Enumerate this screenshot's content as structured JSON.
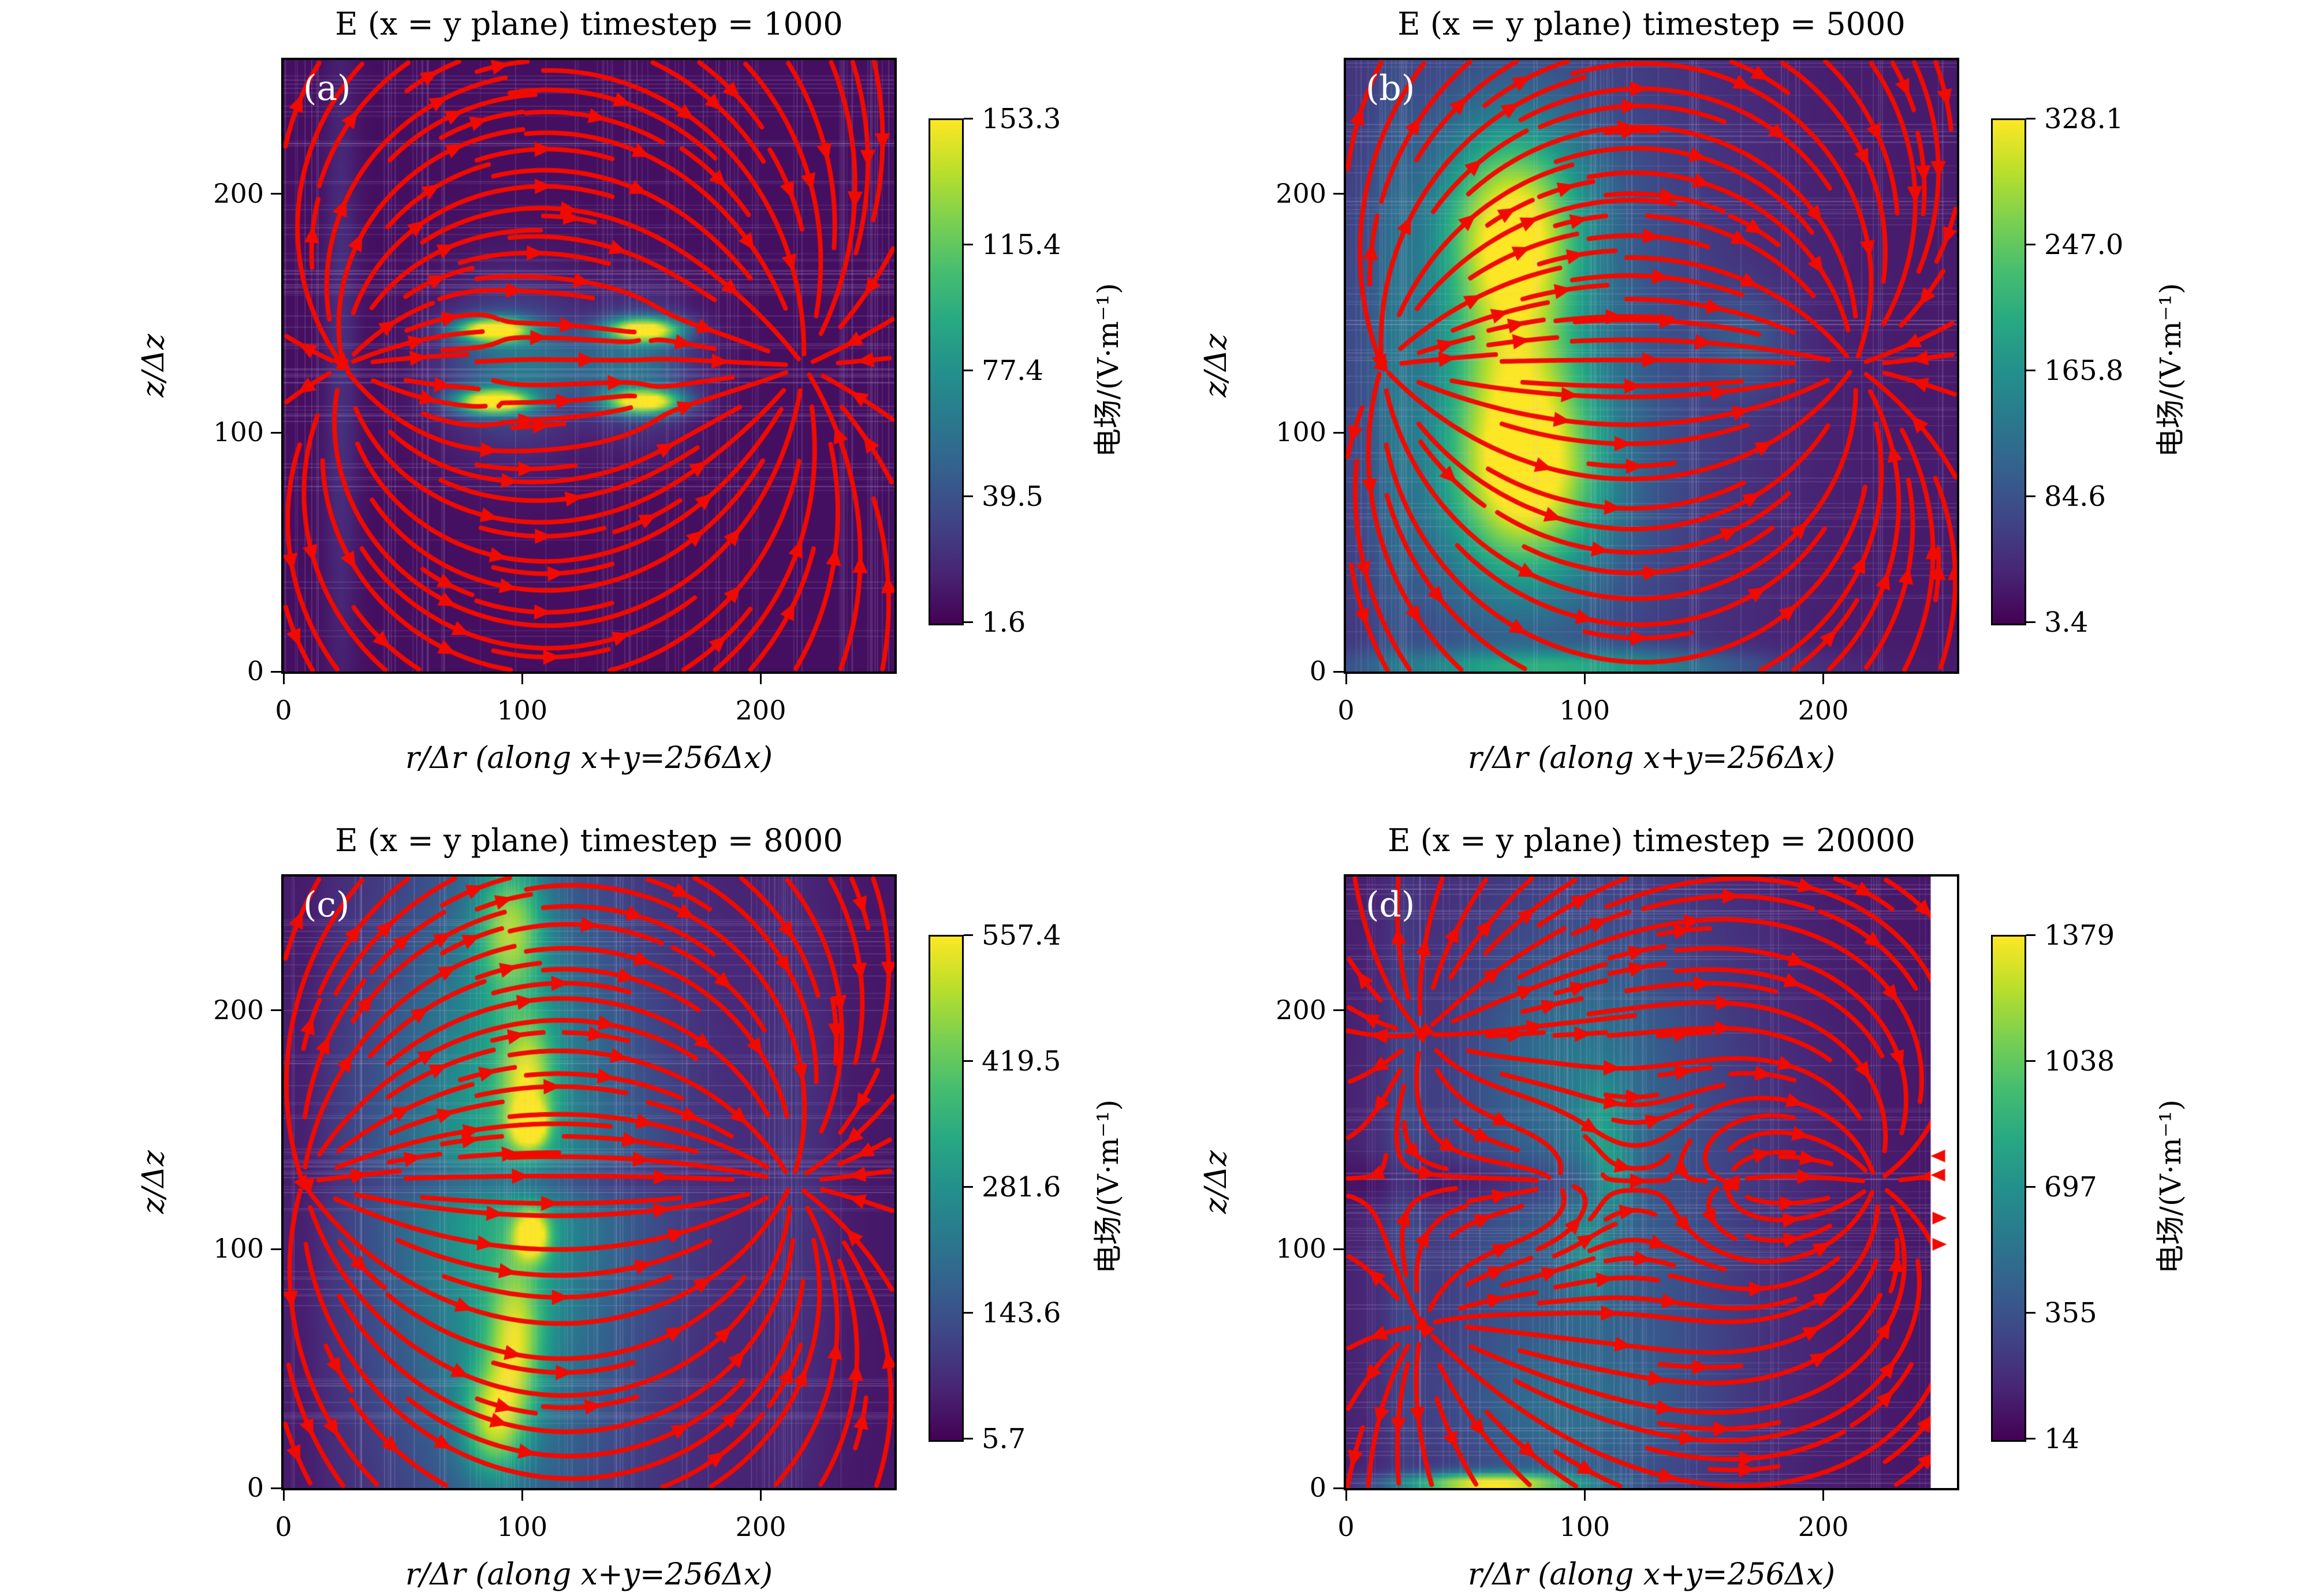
{
  "figure": {
    "background": "#ffffff",
    "streamline_color": "#f10a00",
    "panel_label_color": "#ffffff",
    "colorbar_label": "电场/(V·m⁻¹)"
  },
  "chart_data": [
    {
      "type": "heatmap",
      "panel": "(a)",
      "title": "E (x = y plane) timestep = 1000",
      "xlabel": "r/Δr (along x+y=256Δx)",
      "ylabel": "z/Δz",
      "xlim": [
        0,
        256
      ],
      "ylim": [
        0,
        256
      ],
      "xticks": [
        0,
        100,
        200
      ],
      "yticks": [
        0,
        100,
        200
      ],
      "colorbar": {
        "label": "电场/(V·m⁻¹)",
        "vmax": 153.3,
        "vmin": 1.6,
        "ticks": [
          "153.3",
          "115.4",
          "77.4",
          "39.5",
          "1.6"
        ]
      },
      "heatmap": {
        "base": 0.04,
        "blobs": [
          [
            95,
            128,
            20,
            24,
            0.26
          ],
          [
            150,
            128,
            15,
            20,
            0.24
          ],
          [
            122,
            128,
            28,
            10,
            0.16
          ],
          [
            88,
            143,
            11,
            3.5,
            1.05
          ],
          [
            88,
            113,
            11,
            3.5,
            1.05
          ],
          [
            151,
            143,
            11,
            3.5,
            1.0
          ],
          [
            151,
            113,
            11,
            3.5,
            1.0
          ],
          [
            24,
            128,
            5,
            105,
            0.1
          ]
        ]
      },
      "flow": {
        "sources": [
          [
            25,
            128,
            1.0
          ]
        ],
        "sinks": [
          [
            218,
            128,
            -0.85
          ],
          [
            88,
            143,
            -0.05
          ],
          [
            88,
            113,
            -0.05
          ],
          [
            151,
            143,
            -0.05
          ],
          [
            151,
            113,
            -0.05
          ]
        ]
      }
    },
    {
      "type": "heatmap",
      "panel": "(b)",
      "title": "E (x = y plane) timestep = 5000",
      "xlabel": "r/Δr (along x+y=256Δx)",
      "ylabel": "z/Δz",
      "xlim": [
        0,
        256
      ],
      "ylim": [
        0,
        256
      ],
      "xticks": [
        0,
        100,
        200
      ],
      "yticks": [
        0,
        100,
        200
      ],
      "colorbar": {
        "label": "电场/(V·m⁻¹)",
        "vmax": 328.1,
        "vmin": 3.4,
        "ticks": [
          "328.1",
          "247.0",
          "165.8",
          "84.6",
          "3.4"
        ]
      },
      "heatmap": {
        "base": 0.07,
        "blobs": [
          [
            70,
            128,
            60,
            112,
            0.3
          ],
          [
            70,
            186,
            20,
            28,
            0.72
          ],
          [
            75,
            83,
            22,
            30,
            0.78
          ],
          [
            70,
            135,
            18,
            28,
            0.32
          ],
          [
            168,
            137,
            13,
            15,
            0.15
          ],
          [
            90,
            2,
            55,
            5,
            0.4
          ],
          [
            20,
            128,
            6,
            105,
            0.1
          ]
        ]
      },
      "flow": {
        "sources": [
          [
            15,
            128,
            1.0
          ]
        ],
        "sinks": [
          [
            213,
            128,
            -0.85
          ]
        ]
      }
    },
    {
      "type": "heatmap",
      "panel": "(c)",
      "title": "E (x = y plane) timestep = 8000",
      "xlabel": "r/Δr (along x+y=256Δx)",
      "ylabel": "z/Δz",
      "xlim": [
        0,
        256
      ],
      "ylim": [
        0,
        256
      ],
      "xticks": [
        0,
        100,
        200
      ],
      "yticks": [
        0,
        100,
        200
      ],
      "colorbar": {
        "label": "电场/(V·m⁻¹)",
        "vmax": 557.4,
        "vmin": 5.7,
        "ticks": [
          "557.4",
          "419.5",
          "281.6",
          "143.6",
          "5.7"
        ]
      },
      "heatmap": {
        "base": 0.06,
        "blobs": [
          [
            95,
            128,
            52,
            115,
            0.33
          ],
          [
            92,
            128,
            25,
            95,
            0.22
          ],
          [
            95,
            235,
            10,
            20,
            0.5
          ],
          [
            102,
            172,
            8,
            18,
            0.45
          ],
          [
            103,
            152,
            5,
            6,
            0.7
          ],
          [
            104,
            106,
            5,
            7,
            0.7
          ],
          [
            97,
            62,
            8,
            22,
            0.45
          ],
          [
            88,
            28,
            9,
            16,
            0.5
          ],
          [
            100,
            128,
            38,
            6,
            -0.22
          ],
          [
            8,
            128,
            8,
            115,
            -0.05
          ],
          [
            215,
            128,
            12,
            115,
            0.07
          ]
        ]
      },
      "flow": {
        "sources": [
          [
            8,
            128,
            1.0
          ]
        ],
        "sinks": [
          [
            213,
            128,
            -0.85
          ]
        ]
      }
    },
    {
      "type": "heatmap",
      "panel": "(d)",
      "title": "E (x = y plane) timestep = 20000",
      "xlabel": "r/Δr (along x+y=256Δx)",
      "ylabel": "z/Δz",
      "xlim": [
        0,
        256
      ],
      "ylim": [
        0,
        256
      ],
      "xticks": [
        0,
        100,
        200
      ],
      "yticks": [
        0,
        100,
        200
      ],
      "colorbar": {
        "label": "电场/(V·m⁻¹)",
        "vmax": 1379,
        "vmin": 14,
        "ticks": [
          "1379",
          "1038",
          "697",
          "355",
          "14"
        ]
      },
      "heatmap": {
        "base": 0.06,
        "blobs": [
          [
            102,
            128,
            52,
            115,
            0.26
          ],
          [
            95,
            182,
            24,
            28,
            0.1
          ],
          [
            108,
            150,
            8,
            16,
            0.2
          ],
          [
            113,
            128,
            6,
            9,
            0.18
          ],
          [
            102,
            98,
            8,
            15,
            0.2
          ],
          [
            60,
            2,
            26,
            3,
            0.85
          ],
          [
            90,
            30,
            38,
            22,
            0.13
          ],
          [
            58,
            128,
            40,
            7,
            -0.13
          ],
          [
            24,
            128,
            6,
            105,
            0.09
          ]
        ]
      },
      "flow": {
        "sources": [
          [
            32,
            190,
            0.55
          ],
          [
            32,
            68,
            0.55
          ],
          [
            160,
            128,
            0.3
          ]
        ],
        "sinks": [
          [
            222,
            128,
            -0.75
          ],
          [
            88,
            128,
            -0.18
          ]
        ],
        "edge_arrows": [
          {
            "y": 139,
            "dir": "left"
          },
          {
            "y": 131,
            "dir": "left"
          },
          {
            "y": 113,
            "dir": "right"
          },
          {
            "y": 102,
            "dir": "right"
          }
        ]
      },
      "white_strip": [
        245,
        256
      ]
    }
  ]
}
